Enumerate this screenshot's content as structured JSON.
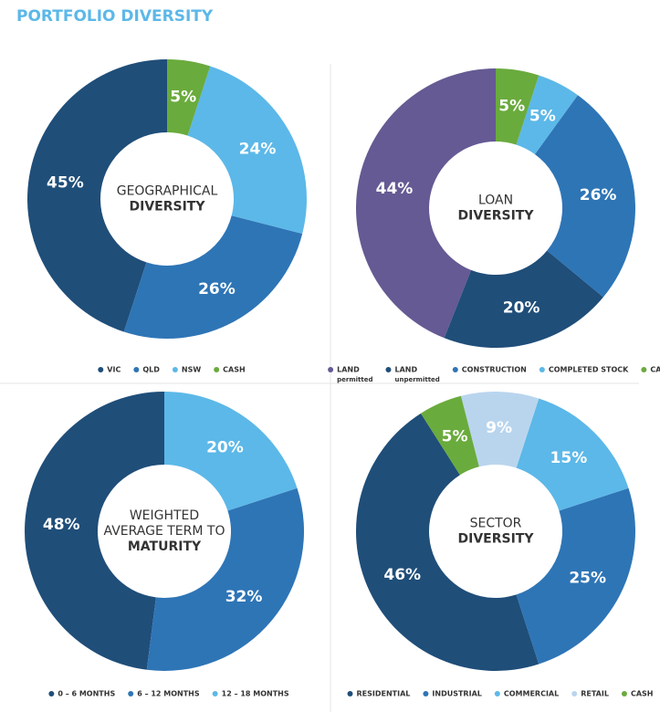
{
  "title": "PORTFOLIO DIVERSITY",
  "chart_data": [
    {
      "type": "donut",
      "center_lines": [
        "GEOGRAPHICAL"
      ],
      "center_bold": "DIVERSITY",
      "categories": [
        "VIC",
        "QLD",
        "NSW",
        "CASH"
      ],
      "values": [
        45,
        26,
        24,
        5
      ],
      "value_labels": [
        "45%",
        "26%",
        "24%",
        "5%"
      ],
      "colors": [
        "#1f4e79",
        "#2e75b6",
        "#5cb8e8",
        "#6aab3d"
      ]
    },
    {
      "type": "donut",
      "center_lines": [
        "LOAN"
      ],
      "center_bold": "DIVERSITY",
      "categories": [
        "LAND",
        "LAND",
        "CONSTRUCTION",
        "COMPLETED STOCK",
        "CASH"
      ],
      "category_notes": [
        "permitted",
        "unpermitted",
        null,
        null,
        null
      ],
      "values": [
        44,
        20,
        26,
        5,
        5
      ],
      "value_labels": [
        "44%",
        "20%",
        "26%",
        "5%",
        "5%"
      ],
      "colors": [
        "#655a93",
        "#1f4e79",
        "#2e75b6",
        "#5cb8e8",
        "#6aab3d"
      ]
    },
    {
      "type": "donut",
      "center_lines": [
        "WEIGHTED",
        "AVERAGE TERM TO"
      ],
      "center_bold": "MATURITY",
      "categories": [
        "0 – 6 MONTHS",
        "6 – 12 MONTHS",
        "12 – 18 MONTHS"
      ],
      "values": [
        48,
        32,
        20
      ],
      "value_labels": [
        "48%",
        "32%",
        "20%"
      ],
      "colors": [
        "#1f4e79",
        "#2e75b6",
        "#5cb8e8"
      ]
    },
    {
      "type": "donut",
      "center_lines": [
        "SECTOR"
      ],
      "center_bold": "DIVERSITY",
      "categories": [
        "RESIDENTIAL",
        "INDUSTRIAL",
        "COMMERCIAL",
        "RETAIL",
        "CASH"
      ],
      "values": [
        46,
        25,
        15,
        9,
        5
      ],
      "value_labels": [
        "46%",
        "25%",
        "15%",
        "9%",
        "5%"
      ],
      "colors": [
        "#1f4e79",
        "#2e75b6",
        "#5cb8e8",
        "#b9d5ee",
        "#6aab3d"
      ]
    }
  ]
}
